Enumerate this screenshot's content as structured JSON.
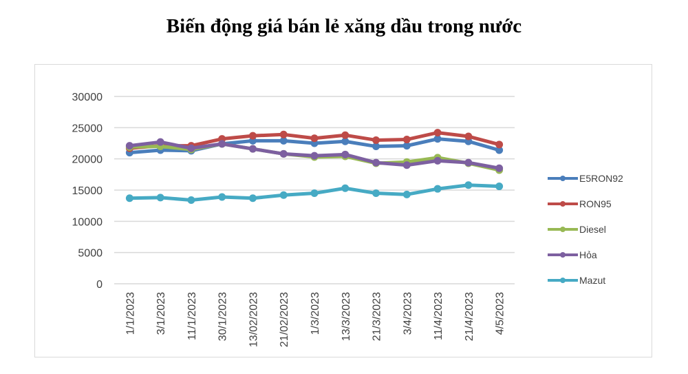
{
  "title": "Biến động giá bán lẻ xăng dầu trong nước",
  "chart_data": {
    "type": "line",
    "title": "Biến động giá bán lẻ xăng dầu trong nước",
    "xlabel": "",
    "ylabel": "",
    "ylim": [
      0,
      30000
    ],
    "yticks": [
      0,
      5000,
      10000,
      15000,
      20000,
      25000,
      30000
    ],
    "grid": true,
    "legend_position": "right",
    "categories": [
      "1/1/2023",
      "3/1/2023",
      "11/1/2023",
      "30/1/2023",
      "13/02/2023",
      "21/02/2023",
      "1/3/2023",
      "13/3/2023",
      "21/3/2023",
      "3/4/2023",
      "11/4/2023",
      "21/4/2023",
      "4/5/2023"
    ],
    "series": [
      {
        "name": "E5RON92",
        "color": "#4a7ebb",
        "values": [
          21000,
          21400,
          21300,
          22400,
          22900,
          22900,
          22500,
          22800,
          22000,
          22100,
          23200,
          22800,
          21400
        ]
      },
      {
        "name": "RON95",
        "color": "#be4b48",
        "values": [
          21700,
          22100,
          22100,
          23200,
          23700,
          23900,
          23300,
          23800,
          23000,
          23100,
          24200,
          23600,
          22300
        ]
      },
      {
        "name": "Diesel",
        "color": "#98b954",
        "values": [
          21900,
          22000,
          21500,
          22400,
          21600,
          20800,
          20300,
          20400,
          19300,
          19500,
          20200,
          19300,
          18200
        ]
      },
      {
        "name": "Hỏa",
        "color": "#7d60a0",
        "values": [
          22100,
          22700,
          21700,
          22400,
          21600,
          20800,
          20500,
          20700,
          19400,
          19000,
          19700,
          19400,
          18500
        ]
      },
      {
        "name": "Mazut",
        "color": "#46aac4",
        "values": [
          13700,
          13800,
          13400,
          13900,
          13700,
          14200,
          14500,
          15300,
          14500,
          14300,
          15200,
          15800,
          15600
        ]
      }
    ]
  }
}
